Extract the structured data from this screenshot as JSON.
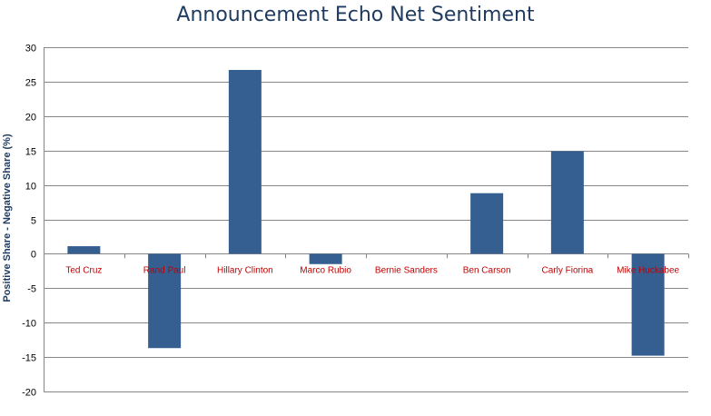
{
  "colors": {
    "bar": "#355e91",
    "grid": "#868686",
    "category_label": "#c00000",
    "title": "#1f3a5f"
  },
  "chart_data": {
    "type": "bar",
    "title": "Announcement Echo Net Sentiment",
    "xlabel": "",
    "ylabel": "Positive Share - Negative Share (%)",
    "ylim": [
      -20,
      30
    ],
    "yticks": [
      30,
      25,
      20,
      15,
      10,
      5,
      0,
      -5,
      -10,
      -15,
      -20
    ],
    "grid": true,
    "categories": [
      "Ted Cruz",
      "Rand Paul",
      "Hillary Clinton",
      "Marco Rubio",
      "Bernie Sanders",
      "Ben Carson",
      "Carly Fiorina",
      "Mike Huckabee"
    ],
    "values": [
      1.1,
      -13.7,
      26.7,
      -1.5,
      0,
      8.8,
      14.9,
      -14.8
    ]
  }
}
